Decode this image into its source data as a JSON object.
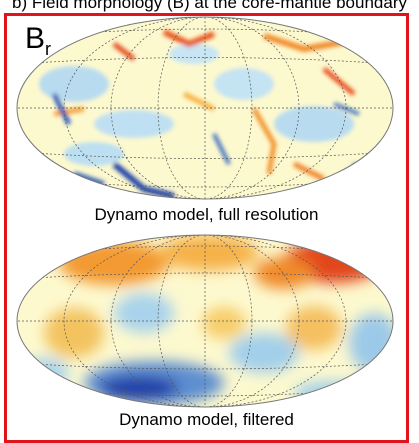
{
  "top_caption": "b) Field morphology (B) at the core-mantle boundary",
  "label": {
    "base": "B",
    "sub": "r"
  },
  "panels": [
    {
      "caption": "Dynamo model, full resolution"
    },
    {
      "caption": "Dynamo model, filtered"
    }
  ],
  "colors": {
    "frame": "#e0141a",
    "positive": "#d7301f",
    "negative": "#1a3ea8",
    "neutral": "#fefcd2"
  }
}
